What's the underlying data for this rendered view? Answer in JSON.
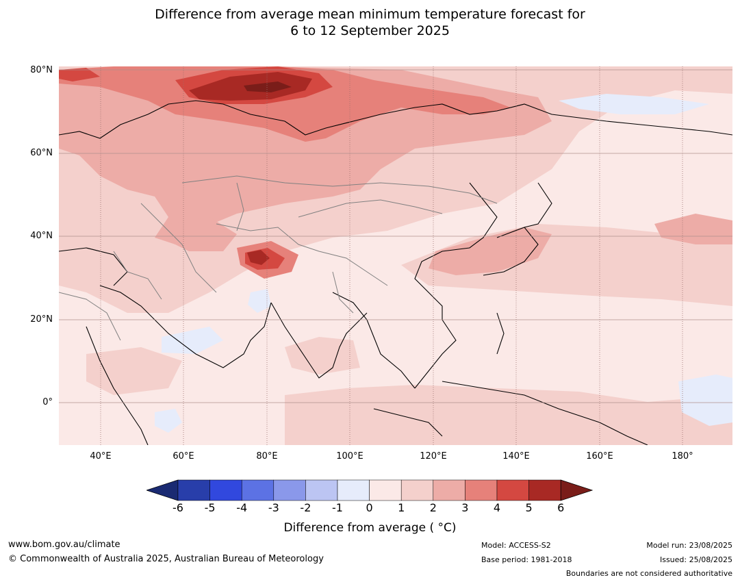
{
  "title": {
    "line1": "Difference from average mean minimum temperature forecast for",
    "line2": "6 to 12 September 2025"
  },
  "map": {
    "lat_labels": [
      "80°N",
      "60°N",
      "40°N",
      "20°N",
      "0°"
    ],
    "lon_labels": [
      "40°E",
      "60°E",
      "80°E",
      "100°E",
      "120°E",
      "140°E",
      "160°E",
      "180°"
    ],
    "land_border_color": "#000000",
    "country_border_color": "#808080"
  },
  "chart_data": {
    "type": "heatmap",
    "title": "Difference from average mean minimum temperature forecast for 6 to 12 September 2025",
    "lon_range": [
      30,
      190
    ],
    "lat_range": [
      -10,
      80
    ],
    "colorbar": {
      "label": "Difference from average ( °C)",
      "ticks": [
        "-6",
        "-5",
        "-4",
        "-3",
        "-2",
        "-1",
        "0",
        "1",
        "2",
        "3",
        "4",
        "5",
        "6"
      ],
      "boundaries": [
        -6,
        -5,
        -4,
        -3,
        -2,
        -1,
        0,
        1,
        2,
        3,
        4,
        5,
        6
      ],
      "colors": [
        "#1a2a72",
        "#283eaa",
        "#3148de",
        "#5c72e4",
        "#8a98ea",
        "#bcc5f3",
        "#e6ecfb",
        "#fbe9e7",
        "#f4d0cc",
        "#edaca7",
        "#e6817a",
        "#d44841",
        "#a82924",
        "#7a1d19"
      ],
      "extend": "both"
    }
  },
  "footer": {
    "website": "www.bom.gov.au/climate",
    "copyright": "© Commonwealth of Australia 2025, Australian Bureau of Meteorology",
    "model": "Model: ACCESS-S2",
    "base_period": "Base period: 1981-2018",
    "model_run": "Model run: 23/08/2025",
    "issued": "Issued: 25/08/2025",
    "disclaimer": "Boundaries are not considered authoritative"
  }
}
